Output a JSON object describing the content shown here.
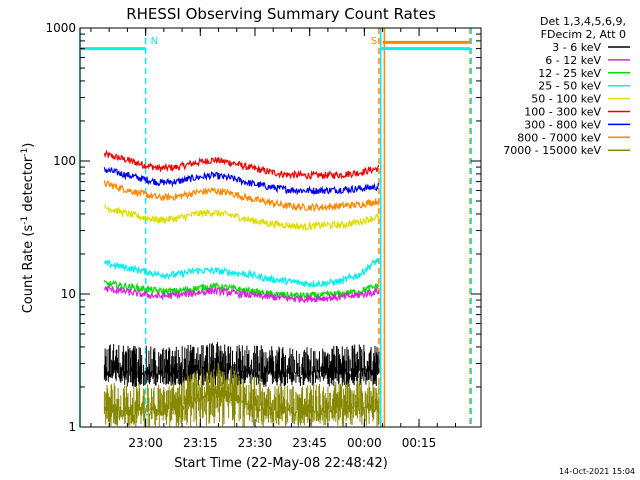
{
  "chart_data": {
    "type": "line",
    "title": "RHESSI Observing Summary Count Rates",
    "xlabel": "Start Time (22-May-08 22:48:42)",
    "ylabel_main": "Count Rate (s",
    "ylabel_sup1": "-1",
    "ylabel_mid": " detector",
    "ylabel_sup2": "-1",
    "ylabel_end": ")",
    "x_unit": "minutes since 22:48:42",
    "xlim": [
      -6.7,
      103.3
    ],
    "yscale": "log",
    "ylim": [
      1,
      1000
    ],
    "x_ticks": [
      {
        "value": 11.3,
        "label": "23:00"
      },
      {
        "value": 26.3,
        "label": "23:15"
      },
      {
        "value": 41.3,
        "label": "23:30"
      },
      {
        "value": 56.3,
        "label": "23:45"
      },
      {
        "value": 71.3,
        "label": "00:00"
      },
      {
        "value": 86.3,
        "label": "00:15"
      }
    ],
    "y_ticks": [
      {
        "value": 1,
        "label": "1"
      },
      {
        "value": 10,
        "label": "10"
      },
      {
        "value": 100,
        "label": "100"
      },
      {
        "value": 1000,
        "label": "1000"
      }
    ],
    "legend": {
      "position": "top-right",
      "header_line1": "Det 1,3,4,5,6,9,",
      "header_line2": "FDecim 2, Att 0",
      "entries": [
        {
          "label": "3 - 6 keV",
          "color": "#000000"
        },
        {
          "label": "6 - 12 keV",
          "color": "#dd22dd"
        },
        {
          "label": "12 - 25 keV",
          "color": "#00dd00"
        },
        {
          "label": "25 - 50 keV",
          "color": "#00eeee"
        },
        {
          "label": "50 - 100 keV",
          "color": "#dddd00"
        },
        {
          "label": "100 - 300 keV",
          "color": "#ee0000"
        },
        {
          "label": "300 - 800 keV",
          "color": "#0000ee"
        },
        {
          "label": "800 - 7000 keV",
          "color": "#ff8800"
        },
        {
          "label": "7000 - 15000 keV",
          "color": "#888800"
        }
      ]
    },
    "series": [
      {
        "name": "100 - 300 keV",
        "color": "#ee0000",
        "x": [
          0,
          5,
          10,
          15,
          20,
          25,
          30,
          35,
          40,
          45,
          50,
          55,
          60,
          65,
          70,
          75
        ],
        "values": [
          112,
          104,
          95,
          88,
          90,
          97,
          102,
          97,
          89,
          83,
          79,
          78,
          78,
          79,
          82,
          88
        ]
      },
      {
        "name": "300 - 800 keV",
        "color": "#0000ee",
        "x": [
          0,
          5,
          10,
          15,
          20,
          25,
          30,
          35,
          40,
          45,
          50,
          55,
          60,
          65,
          70,
          75
        ],
        "values": [
          86,
          80,
          74,
          69,
          70,
          75,
          78,
          74,
          68,
          64,
          61,
          60,
          60,
          61,
          62,
          64
        ]
      },
      {
        "name": "800 - 7000 keV",
        "color": "#ff8800",
        "x": [
          0,
          5,
          10,
          15,
          20,
          25,
          30,
          35,
          40,
          45,
          50,
          55,
          60,
          65,
          70,
          75
        ],
        "values": [
          68,
          62,
          57,
          53,
          54,
          58,
          60,
          57,
          52,
          49,
          46,
          45,
          45,
          46,
          47,
          50
        ]
      },
      {
        "name": "50 - 100 keV",
        "color": "#dddd00",
        "x": [
          0,
          5,
          10,
          15,
          20,
          25,
          30,
          35,
          40,
          45,
          50,
          55,
          60,
          65,
          70,
          75
        ],
        "values": [
          45,
          41,
          38,
          36,
          37,
          40,
          41,
          39,
          36,
          34,
          33,
          32,
          33,
          33,
          35,
          38
        ]
      },
      {
        "name": "25 - 50 keV",
        "color": "#00eeee",
        "x": [
          0,
          5,
          10,
          15,
          20,
          25,
          30,
          35,
          40,
          45,
          50,
          55,
          60,
          65,
          70,
          75
        ],
        "values": [
          17,
          16,
          15,
          14,
          14,
          15,
          15,
          14.5,
          14,
          13,
          12.5,
          12,
          12,
          12.5,
          14,
          18
        ]
      },
      {
        "name": "12 - 25 keV",
        "color": "#00dd00",
        "x": [
          0,
          5,
          10,
          15,
          20,
          25,
          30,
          35,
          40,
          45,
          50,
          55,
          60,
          65,
          70,
          75
        ],
        "values": [
          12,
          11.5,
          11,
          10.5,
          10.5,
          11,
          11.5,
          11,
          10.5,
          10,
          9.8,
          9.7,
          9.8,
          10,
          10.5,
          11.5
        ]
      },
      {
        "name": "6 - 12 keV",
        "color": "#dd22dd",
        "x": [
          0,
          5,
          10,
          15,
          20,
          25,
          30,
          35,
          40,
          45,
          50,
          55,
          60,
          65,
          70,
          75
        ],
        "values": [
          11,
          10.5,
          10,
          9.6,
          9.8,
          10.2,
          10.6,
          10.2,
          9.8,
          9.5,
          9.3,
          9.2,
          9.3,
          9.5,
          9.8,
          10.5
        ]
      },
      {
        "name": "3 - 6 keV",
        "color": "#000000",
        "x": [
          0,
          5,
          10,
          15,
          20,
          25,
          30,
          35,
          40,
          45,
          50,
          55,
          60,
          65,
          70,
          75
        ],
        "values": [
          3.0,
          3.0,
          2.9,
          2.8,
          2.9,
          3.0,
          3.1,
          3.0,
          2.9,
          2.9,
          2.8,
          2.8,
          2.9,
          2.9,
          3.0,
          3.0
        ]
      },
      {
        "name": "7000 - 15000 keV",
        "color": "#888800",
        "x": [
          0,
          5,
          10,
          15,
          20,
          25,
          30,
          35,
          40,
          45,
          50,
          55,
          60,
          65,
          70,
          75
        ],
        "values": [
          1.6,
          1.5,
          1.5,
          1.5,
          1.6,
          1.9,
          2.2,
          2.0,
          1.7,
          1.6,
          1.5,
          1.5,
          1.5,
          1.6,
          1.6,
          1.6
        ]
      }
    ],
    "flag_bars": [
      {
        "name": "night",
        "color": "#00eeee",
        "label": "",
        "segments": [
          [
            -6.7,
            11.3
          ],
          [
            75.8,
            100.3
          ]
        ],
        "value": 700
      },
      {
        "name": "saa",
        "color": "#ff8800",
        "label": "S",
        "segments": [
          [
            76.3,
            100.3
          ]
        ],
        "value": 780
      }
    ],
    "vertical_markers": [
      {
        "x": -6.7,
        "color": "#00eeee",
        "style": "solid",
        "label": ""
      },
      {
        "x": 11.3,
        "color": "#00eeee",
        "style": "dashed",
        "label": "N"
      },
      {
        "x": 75.3,
        "color": "#ff8800",
        "style": "dashed",
        "label": "S"
      },
      {
        "x": 75.8,
        "color": "#00eeee",
        "style": "solid",
        "label": ""
      },
      {
        "x": 76.8,
        "color": "#ff8800",
        "style": "solid",
        "label": ""
      },
      {
        "x": 100.3,
        "color": "#ff8800",
        "style": "dashed",
        "label": ""
      },
      {
        "x": 100.6,
        "color": "#00eeee",
        "style": "dashed",
        "label": ""
      }
    ],
    "footer_timestamp": "14-Oct-2021 15:04"
  }
}
